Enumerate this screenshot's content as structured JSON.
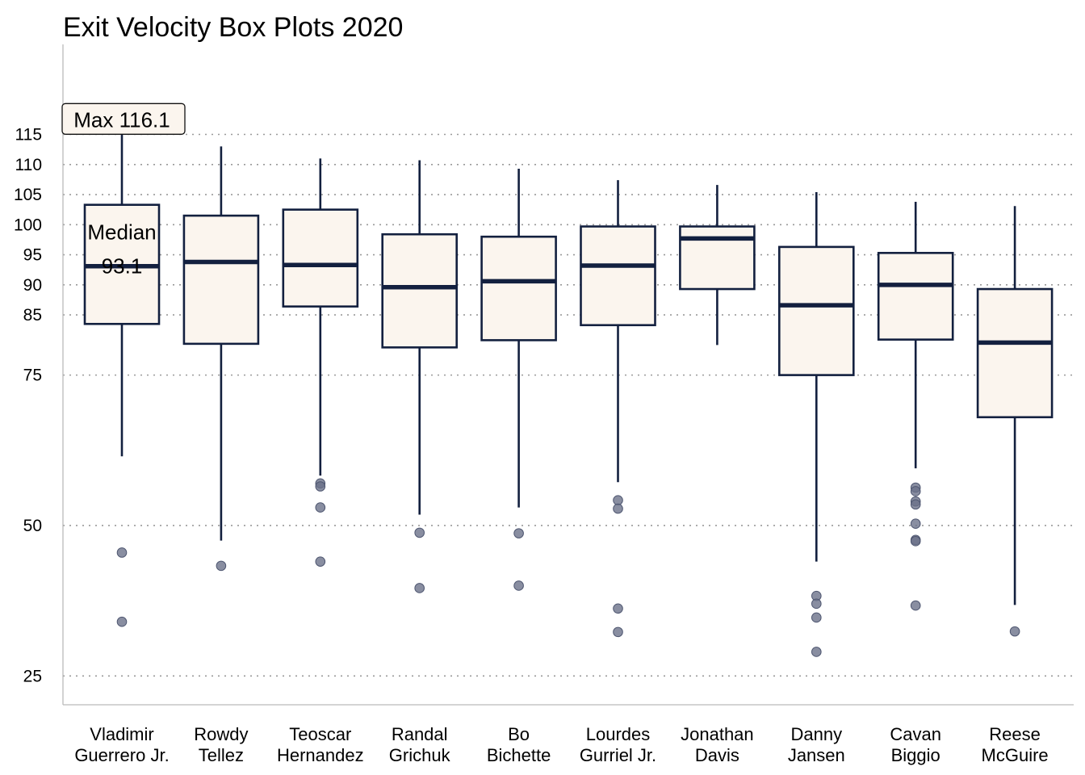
{
  "chart_data": {
    "type": "box",
    "title": "Exit Velocity Box Plots 2020",
    "xlabel": "",
    "ylabel": "",
    "ylim": [
      20,
      130
    ],
    "yticks": [
      25,
      50,
      75,
      85,
      90,
      95,
      100,
      105,
      110,
      115
    ],
    "grid": {
      "horizontal": true,
      "style": "dotted"
    },
    "colors": {
      "box_fill": "#fbf5ee",
      "box_stroke": "#13203f",
      "outlier": "#6b7289",
      "grid": "#999999"
    },
    "categories": [
      [
        "Vladimir",
        "Guerrero Jr."
      ],
      [
        "Rowdy",
        "Tellez"
      ],
      [
        "Teoscar",
        "Hernandez"
      ],
      [
        "Randal",
        "Grichuk"
      ],
      [
        "Bo",
        "Bichette"
      ],
      [
        "Lourdes",
        "Gurriel Jr."
      ],
      [
        "Jonathan",
        "Davis"
      ],
      [
        "Danny",
        "Jansen"
      ],
      [
        "Cavan",
        "Biggio"
      ],
      [
        "Reese",
        "McGuire"
      ]
    ],
    "boxes": [
      {
        "whisker_low": 61.5,
        "q1": 83.5,
        "median": 93.1,
        "q3": 103.3,
        "whisker_high": 116.1,
        "outliers": [
          45.5,
          34.0
        ]
      },
      {
        "whisker_low": 47.5,
        "q1": 80.2,
        "median": 93.8,
        "q3": 101.5,
        "whisker_high": 113.0,
        "outliers": [
          43.3
        ]
      },
      {
        "whisker_low": 58.3,
        "q1": 86.4,
        "median": 93.3,
        "q3": 102.5,
        "whisker_high": 111.0,
        "outliers": [
          57.0,
          56.5,
          53.0,
          44.0
        ]
      },
      {
        "whisker_low": 51.8,
        "q1": 79.6,
        "median": 89.6,
        "q3": 98.4,
        "whisker_high": 110.7,
        "outliers": [
          48.8,
          39.6
        ]
      },
      {
        "whisker_low": 53.0,
        "q1": 80.8,
        "median": 90.6,
        "q3": 98.0,
        "whisker_high": 109.3,
        "outliers": [
          48.7,
          40.0
        ]
      },
      {
        "whisker_low": 57.2,
        "q1": 83.3,
        "median": 93.2,
        "q3": 99.7,
        "whisker_high": 107.4,
        "outliers": [
          54.2,
          52.8,
          36.2,
          32.3
        ]
      },
      {
        "whisker_low": 80.0,
        "q1": 89.3,
        "median": 97.7,
        "q3": 99.7,
        "whisker_high": 106.6,
        "outliers": []
      },
      {
        "whisker_low": 44.0,
        "q1": 75.0,
        "median": 86.6,
        "q3": 96.3,
        "whisker_high": 105.4,
        "outliers": [
          38.3,
          37.0,
          34.7,
          29.0
        ]
      },
      {
        "whisker_low": 59.5,
        "q1": 80.9,
        "median": 90.0,
        "q3": 95.3,
        "whisker_high": 103.8,
        "outliers": [
          56.3,
          55.7,
          54.0,
          53.5,
          50.3,
          47.6,
          47.4,
          36.7
        ]
      },
      {
        "whisker_low": 36.8,
        "q1": 68.0,
        "median": 80.4,
        "q3": 89.3,
        "whisker_high": 103.1,
        "outliers": [
          32.4
        ]
      }
    ],
    "annotations": {
      "max": {
        "text": "Max 116.1",
        "category": 0,
        "value": 116.1
      },
      "median": {
        "text_line1": "Median",
        "text_line2": "93.1",
        "category": 0,
        "value": 93.1
      }
    }
  }
}
